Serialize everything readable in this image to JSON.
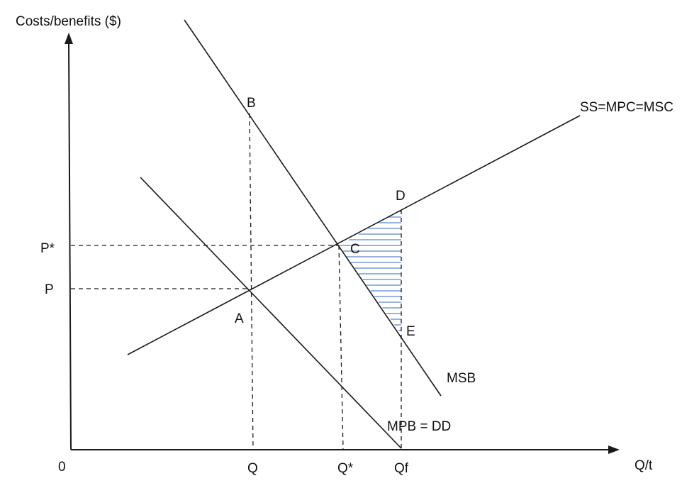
{
  "axes": {
    "y_label": "Costs/benefits ($)",
    "x_label": "Q/t",
    "origin": "0"
  },
  "curves": {
    "supply": "SS=MPC=MSC",
    "msb": "MSB",
    "demand": "MPB = DD"
  },
  "points": {
    "A": "A",
    "B": "B",
    "C": "C",
    "D": "D",
    "E": "E"
  },
  "y_ticks": {
    "p_star": "P*",
    "p": "P"
  },
  "x_ticks": {
    "q": "Q",
    "q_star": "Q*",
    "qf": "Qf"
  },
  "colors": {
    "lines": "#1a1a1a",
    "hatch": "#5b86c9"
  }
}
